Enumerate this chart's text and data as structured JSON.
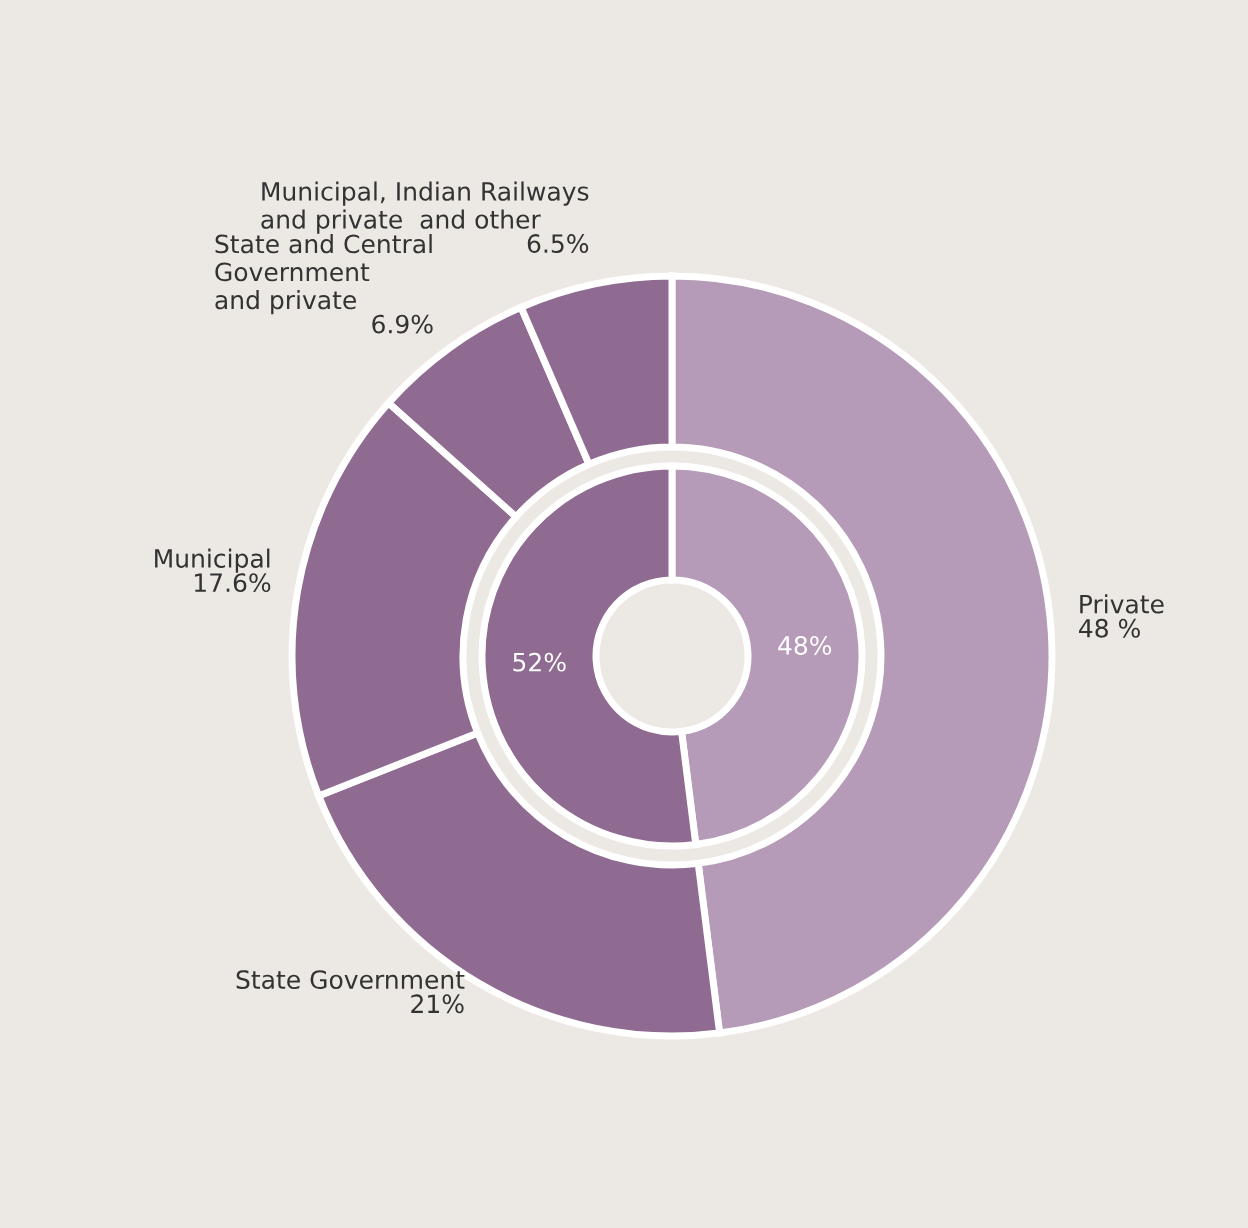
{
  "chart_data": {
    "type": "donut",
    "categories": [
      "Private",
      "State Government",
      "Municipal",
      "State and Central\nGovernment\nand private",
      "Municipal, Indian Railways\nand private  and other"
    ],
    "series": [
      {
        "values": [
          48,
          21,
          17.6,
          6.9,
          6.5
        ],
        "value_labels": [
          "48 %",
          "21%",
          "17.6%",
          "6.9%",
          "6.5%"
        ],
        "colors": [
          "#b59bb8",
          "#8f6b91",
          "#8f6b91",
          "#8f6b91",
          "#8f6b91"
        ]
      },
      {
        "values": [
          48,
          52,
          null,
          null,
          null
        ],
        "value_labels": [
          "48%",
          "52%",
          null,
          null,
          null
        ],
        "colors": [
          "#b59bb8",
          "#8f6b91",
          "#8f6b91",
          "#8f6b91",
          "#8f6b91"
        ]
      }
    ]
  }
}
